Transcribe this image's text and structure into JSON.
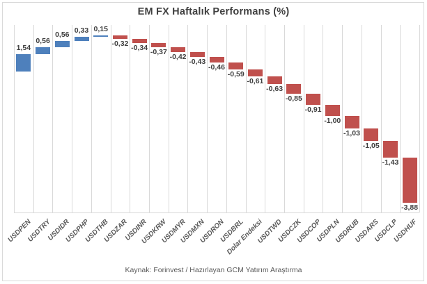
{
  "chart_data": {
    "type": "bar",
    "subtype": "waterfall",
    "title": "EM FX Haftalık Performans (%)",
    "source": "Kaynak: Forinvest / Hazırlayan GCM Yatırım Araştırma",
    "categories": [
      "USDPEN",
      "USDTRY",
      "USDIDR",
      "USDPHP",
      "USDTHB",
      "USDZAR",
      "USDINR",
      "USDKRW",
      "USDMYR",
      "USDMXN",
      "USDRON",
      "USDBRL",
      "Dolar Endeksi",
      "USDTWD",
      "USDCZK",
      "USDCOP",
      "USDPLN",
      "USDRUB",
      "USDARS",
      "USDCLP",
      "USDHUF"
    ],
    "values": [
      1.54,
      0.56,
      0.56,
      0.33,
      0.15,
      -0.32,
      -0.34,
      -0.37,
      -0.42,
      -0.43,
      -0.46,
      -0.59,
      -0.61,
      -0.63,
      -0.85,
      -0.91,
      -1.0,
      -1.03,
      -1.05,
      -1.43,
      -3.88
    ],
    "value_labels": [
      "1,54",
      "0,56",
      "0,56",
      "0,33",
      "0,15",
      "-0,32",
      "-0,34",
      "-0,37",
      "-0,42",
      "-0,43",
      "-0,46",
      "-0,59",
      "-0,61",
      "-0,63",
      "-0,85",
      "-0,91",
      "-1,00",
      "-1,03",
      "-1,05",
      "-1,43",
      "-3,88"
    ],
    "colors": {
      "positive_bar": "#4E80BC",
      "negative_bar": "#C0504D",
      "gridline": "#D9D9D9",
      "axis_line": "#D9D9D9",
      "title_text": "#404040",
      "value_label_text": "#3F3F3F",
      "axis_label_text": "#595959",
      "source_text": "#595959"
    },
    "ylim": [
      -12,
      4
    ],
    "grid": "vertical-only",
    "legend": "none",
    "data_label_position": "outside-end",
    "x_label_rotation_deg": -45
  }
}
